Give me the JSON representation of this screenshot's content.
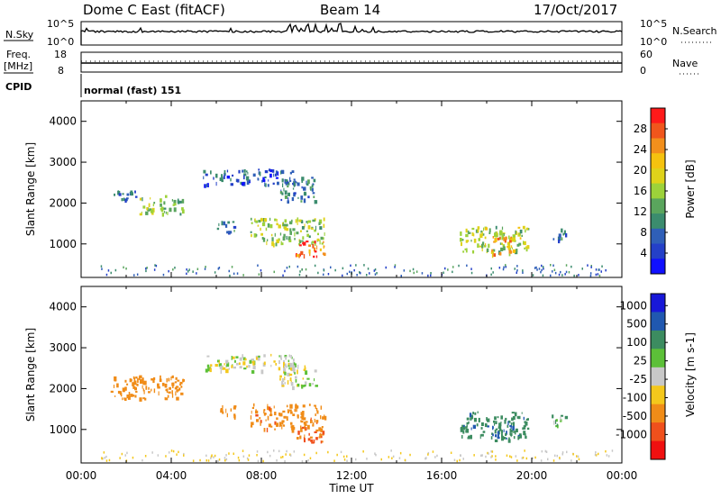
{
  "header": {
    "station": "Dome C East (fitACF)",
    "beam": "Beam 14",
    "date": "17/Oct/2017"
  },
  "top_panels": {
    "nsky_label": "N.Sky",
    "nsky_ticks": [
      "10^5",
      "10^0"
    ],
    "nsearch_label": "N.Search",
    "nsearch_ticks": [
      "10^5",
      "10^0"
    ],
    "freq_label": "Freq.",
    "freq_unit": "[MHz]",
    "freq_ticks": [
      "18",
      "8"
    ],
    "nave_label": "Nave",
    "nave_ticks": [
      "60",
      "0"
    ],
    "cpid_label": "CPID",
    "cpid_value": "normal (fast) 151"
  },
  "chart_data": [
    {
      "type": "heatmap",
      "name": "power-panel",
      "ylabel": "Slant Range [km]",
      "yticks": [
        "4000",
        "3000",
        "2000",
        "1000"
      ],
      "ylim": [
        180,
        4500
      ],
      "xlim_hours": [
        0,
        24
      ],
      "colorbar_label": "Power [dB]",
      "colorbar_ticks": [
        "28",
        "24",
        "20",
        "16",
        "12",
        "8",
        "4"
      ],
      "colorbar_colors": [
        "#ff1a1a",
        "#f0561c",
        "#f28f1c",
        "#f5c20f",
        "#dfd21a",
        "#9dd23a",
        "#5aa55d",
        "#3b8c6e",
        "#2f5fb8",
        "#2440c8",
        "#1010ff"
      ],
      "regions": [
        {
          "t0": 1.3,
          "t1": 2.6,
          "r0": 2100,
          "r1": 2350,
          "v": 6
        },
        {
          "t0": 2.5,
          "t1": 4.5,
          "r0": 1750,
          "r1": 2200,
          "v": 14
        },
        {
          "t0": 5.4,
          "t1": 9.5,
          "r0": 2450,
          "r1": 2850,
          "v": 5
        },
        {
          "t0": 8.8,
          "t1": 10.4,
          "r0": 2050,
          "r1": 2650,
          "v": 8
        },
        {
          "t0": 7.5,
          "t1": 10.8,
          "r0": 1000,
          "r1": 1650,
          "v": 14
        },
        {
          "t0": 9.5,
          "t1": 10.8,
          "r0": 700,
          "r1": 1100,
          "v": 27
        },
        {
          "t0": 6.0,
          "t1": 6.8,
          "r0": 1300,
          "r1": 1600,
          "v": 6
        },
        {
          "t0": 16.8,
          "t1": 19.8,
          "r0": 800,
          "r1": 1450,
          "v": 15
        },
        {
          "t0": 18.2,
          "t1": 19.2,
          "r0": 750,
          "r1": 1200,
          "v": 21
        },
        {
          "t0": 20.8,
          "t1": 21.5,
          "r0": 1100,
          "r1": 1400,
          "v": 8
        }
      ]
    },
    {
      "type": "heatmap",
      "name": "velocity-panel",
      "ylabel": "Slant Range [km]",
      "yticks": [
        "4000",
        "3000",
        "2000",
        "1000"
      ],
      "ylim": [
        180,
        4500
      ],
      "xlim_hours": [
        0,
        24
      ],
      "xlabel": "Time UT",
      "xticks": [
        "00:00",
        "04:00",
        "08:00",
        "12:00",
        "16:00",
        "20:00",
        "00:00"
      ],
      "colorbar_label": "Velocity [m s-1]",
      "colorbar_ticks": [
        "1000",
        "500",
        "100",
        "25",
        "-25",
        "-100",
        "-500",
        "-1000"
      ],
      "colorbar_colors": [
        "#1818d8",
        "#2058b0",
        "#3c8c60",
        "#5cc038",
        "#c8c8c8",
        "#f4c81c",
        "#f08c18",
        "#f0501c",
        "#f01010"
      ],
      "regions": [
        {
          "t0": 1.3,
          "t1": 4.5,
          "r0": 1750,
          "r1": 2350,
          "v": -200
        },
        {
          "t0": 5.4,
          "t1": 9.5,
          "r0": 2450,
          "r1": 2850,
          "v": 0
        },
        {
          "t0": 8.8,
          "t1": 10.4,
          "r0": 2050,
          "r1": 2650,
          "v": 0
        },
        {
          "t0": 7.5,
          "t1": 10.8,
          "r0": 1000,
          "r1": 1650,
          "v": -250
        },
        {
          "t0": 9.5,
          "t1": 10.8,
          "r0": 700,
          "r1": 1100,
          "v": -300
        },
        {
          "t0": 6.0,
          "t1": 6.8,
          "r0": 1300,
          "r1": 1600,
          "v": -200
        },
        {
          "t0": 16.8,
          "t1": 19.8,
          "r0": 800,
          "r1": 1450,
          "v": 250
        },
        {
          "t0": 18.2,
          "t1": 19.2,
          "r0": 750,
          "r1": 1200,
          "v": 300
        },
        {
          "t0": 20.8,
          "t1": 21.5,
          "r0": 1100,
          "r1": 1400,
          "v": 60
        }
      ]
    }
  ]
}
